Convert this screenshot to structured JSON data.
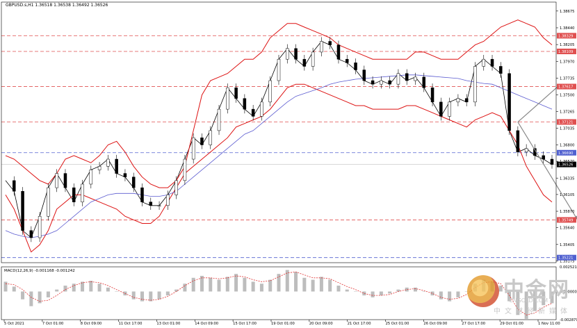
{
  "header": {
    "symbol_label": "GBPUSD.s,H1  1.36518 1.36538 1.36492 1.36526"
  },
  "macd_label": "MACD(12,26,9) -0.001168 -0.001242",
  "watermark": {
    "cn_name": "中金网",
    "url": "CNGOLD.COM",
    "subtitle": "中文财经新媒体"
  },
  "chart_data": {
    "type": "line",
    "title": "GBPUSD.s,H1",
    "ylim": [
      1.3515,
      1.388
    ],
    "price_ticks": [
      "1.38675",
      "1.38440",
      "1.38205",
      "1.37970",
      "1.37735",
      "1.37500",
      "1.37265",
      "1.37035",
      "1.36800",
      "1.36570",
      "1.36335",
      "1.36105",
      "1.35870",
      "1.35640",
      "1.35405",
      "1.35175"
    ],
    "price_tick_values": [
      1.38675,
      1.3844,
      1.38205,
      1.3797,
      1.37735,
      1.375,
      1.37265,
      1.37035,
      1.368,
      1.3657,
      1.36335,
      1.36105,
      1.3587,
      1.3564,
      1.35405,
      1.35175
    ],
    "x_tick_labels": [
      "5 Oct 2021",
      "7 Oct 01:00",
      "8 Oct 09:00",
      "11 Oct 17:00",
      "13 Oct 01:00",
      "14 Oct 09:00",
      "15 Oct 17:00",
      "19 Oct 01:00",
      "20 Oct 09:00",
      "21 Oct 17:00",
      "25 Oct 01:00",
      "26 Oct 09:00",
      "27 Oct 17:00",
      "29 Oct 01:00",
      "1 Nov 11:00"
    ],
    "levels": [
      {
        "label": "1.38329",
        "value": 1.38329,
        "color": "#e05050",
        "style": "dash"
      },
      {
        "label": "1.38109",
        "value": 1.38109,
        "color": "#e05050",
        "style": "dash"
      },
      {
        "label": "1.37617",
        "value": 1.37617,
        "color": "#e05050",
        "style": "dash"
      },
      {
        "label": "1.37121",
        "value": 1.37121,
        "color": "#e05050",
        "style": "dash"
      },
      {
        "label": "1.36690",
        "value": 1.3669,
        "color": "#5060d0",
        "style": "dash"
      },
      {
        "label": "1.35749",
        "value": 1.35749,
        "color": "#e05050",
        "style": "dash"
      },
      {
        "label": "1.35221",
        "value": 1.35221,
        "color": "#5060d0",
        "style": "dash"
      }
    ],
    "current_price": {
      "label": "1.36526",
      "value": 1.36526
    },
    "series": [
      {
        "values": [
          1.363,
          1.3615,
          1.356,
          1.355,
          1.358,
          1.362,
          1.364,
          1.362,
          1.36,
          1.3625,
          1.3645,
          1.365,
          1.366,
          1.364,
          1.3635,
          1.362,
          1.36,
          1.3595,
          1.3595,
          1.361,
          1.363,
          1.366,
          1.369,
          1.368,
          1.37,
          1.373,
          1.376,
          1.3745,
          1.373,
          1.372,
          1.374,
          1.377,
          1.38,
          1.3815,
          1.38,
          1.379,
          1.381,
          1.3825,
          1.382,
          1.38,
          1.3795,
          1.3785,
          1.377,
          1.3765,
          1.377,
          1.3765,
          1.378,
          1.377,
          1.3775,
          1.376,
          1.374,
          1.372,
          1.374,
          1.3745,
          1.374,
          1.379,
          1.38,
          1.379,
          1.378,
          1.37,
          1.367,
          1.3675,
          1.3665,
          1.366,
          1.36526
        ]
      },
      {
        "values": [
          1.3665,
          1.366,
          1.365,
          1.364,
          1.363,
          1.3625,
          1.364,
          1.366,
          1.3665,
          1.366,
          1.3655,
          1.3665,
          1.368,
          1.3685,
          1.367,
          1.365,
          1.3635,
          1.3625,
          1.362,
          1.362,
          1.363,
          1.365,
          1.37,
          1.375,
          1.377,
          1.3775,
          1.378,
          1.379,
          1.38,
          1.38,
          1.381,
          1.383,
          1.384,
          1.385,
          1.385,
          1.3845,
          1.384,
          1.3835,
          1.383,
          1.382,
          1.3815,
          1.381,
          1.3805,
          1.38,
          1.38,
          1.38,
          1.38,
          1.38,
          1.381,
          1.381,
          1.3805,
          1.38,
          1.38,
          1.38,
          1.381,
          1.382,
          1.3825,
          1.3835,
          1.3845,
          1.385,
          1.3855,
          1.385,
          1.3845,
          1.383,
          1.382
        ]
      },
      {
        "values": [
          1.361,
          1.359,
          1.356,
          1.353,
          1.354,
          1.356,
          1.359,
          1.36,
          1.361,
          1.361,
          1.3605,
          1.36,
          1.3595,
          1.359,
          1.358,
          1.3575,
          1.357,
          1.357,
          1.358,
          1.36,
          1.362,
          1.364,
          1.365,
          1.366,
          1.367,
          1.368,
          1.369,
          1.3705,
          1.371,
          1.3715,
          1.372,
          1.373,
          1.3745,
          1.376,
          1.3765,
          1.3765,
          1.376,
          1.3755,
          1.375,
          1.3745,
          1.374,
          1.3735,
          1.3735,
          1.373,
          1.373,
          1.373,
          1.373,
          1.3735,
          1.3735,
          1.373,
          1.3725,
          1.372,
          1.3715,
          1.371,
          1.3705,
          1.3715,
          1.372,
          1.3725,
          1.372,
          1.37,
          1.368,
          1.365,
          1.363,
          1.361,
          1.36
        ]
      },
      {
        "values": [
          1.356,
          1.3555,
          1.3552,
          1.355,
          1.3552,
          1.3555,
          1.356,
          1.357,
          1.358,
          1.359,
          1.36,
          1.3605,
          1.361,
          1.3612,
          1.3612,
          1.3612,
          1.361,
          1.3608,
          1.3608,
          1.361,
          1.3615,
          1.3625,
          1.3635,
          1.3645,
          1.3655,
          1.3665,
          1.3675,
          1.3685,
          1.3695,
          1.37,
          1.371,
          1.372,
          1.373,
          1.374,
          1.3748,
          1.3752,
          1.3756,
          1.376,
          1.3765,
          1.3768,
          1.377,
          1.3772,
          1.3773,
          1.3774,
          1.3775,
          1.3776,
          1.3777,
          1.3778,
          1.3778,
          1.3777,
          1.3776,
          1.3775,
          1.3774,
          1.3773,
          1.377,
          1.3768,
          1.3766,
          1.3765,
          1.376,
          1.3755,
          1.375,
          1.3745,
          1.374,
          1.3735,
          1.373
        ]
      }
    ],
    "macd": {
      "histogram": [
        0.001,
        0.0005,
        -0.0008,
        -0.0015,
        -0.0012,
        -0.0006,
        0.0002,
        0.0006,
        0.0008,
        0.001,
        0.0011,
        0.0008,
        0.0004,
        0.0,
        -0.0004,
        -0.0008,
        -0.001,
        -0.001,
        -0.0008,
        -0.0004,
        0.0002,
        0.0008,
        0.0014,
        0.0016,
        0.0014,
        0.0012,
        0.0015,
        0.0018,
        0.0014,
        0.001,
        0.0008,
        0.0012,
        0.0018,
        0.0022,
        0.002,
        0.0014,
        0.0012,
        0.0015,
        0.0012,
        0.0006,
        0.0002,
        0.0,
        -0.0004,
        -0.0006,
        -0.0004,
        -0.0002,
        0.0002,
        0.0004,
        0.0004,
        0.0,
        -0.0004,
        -0.0008,
        -0.001,
        -0.0006,
        0.0,
        0.0008,
        0.0012,
        0.001,
        0.0006,
        -0.001,
        -0.0024,
        -0.0028,
        -0.002,
        -0.0014,
        -0.0012
      ],
      "signal": [
        0.0008,
        0.0007,
        0.0002,
        -0.0006,
        -0.001,
        -0.0009,
        -0.0004,
        0.0002,
        0.0006,
        0.0009,
        0.001,
        0.0009,
        0.0006,
        0.0002,
        -0.0002,
        -0.0006,
        -0.0008,
        -0.0009,
        -0.0008,
        -0.0005,
        0.0,
        0.0006,
        0.0011,
        0.0014,
        0.0014,
        0.0013,
        0.0014,
        0.0016,
        0.0015,
        0.0012,
        0.001,
        0.0011,
        0.0015,
        0.0019,
        0.002,
        0.0017,
        0.0014,
        0.0014,
        0.0013,
        0.0009,
        0.0005,
        0.0002,
        -0.0002,
        -0.0004,
        -0.0004,
        -0.0003,
        0.0,
        0.0002,
        0.0003,
        0.0001,
        -0.0002,
        -0.0006,
        -0.0008,
        -0.0007,
        -0.0003,
        0.0004,
        0.0009,
        0.001,
        0.0008,
        -0.0004,
        -0.0018,
        -0.0024,
        -0.0022,
        -0.0016,
        -0.0012
      ],
      "ticks": [
        "0.002521",
        "0.000000",
        "-0.002879"
      ],
      "tick_values": [
        0.002521,
        0.0,
        -0.002879
      ]
    },
    "forecast_arrows": [
      {
        "from": [
          60,
          1.3712
        ],
        "to": [
          65,
          1.3765
        ],
        "color": "#888888"
      },
      {
        "from": [
          60,
          1.3712
        ],
        "to": [
          67,
          1.3575
        ],
        "color": "#888888"
      }
    ]
  }
}
